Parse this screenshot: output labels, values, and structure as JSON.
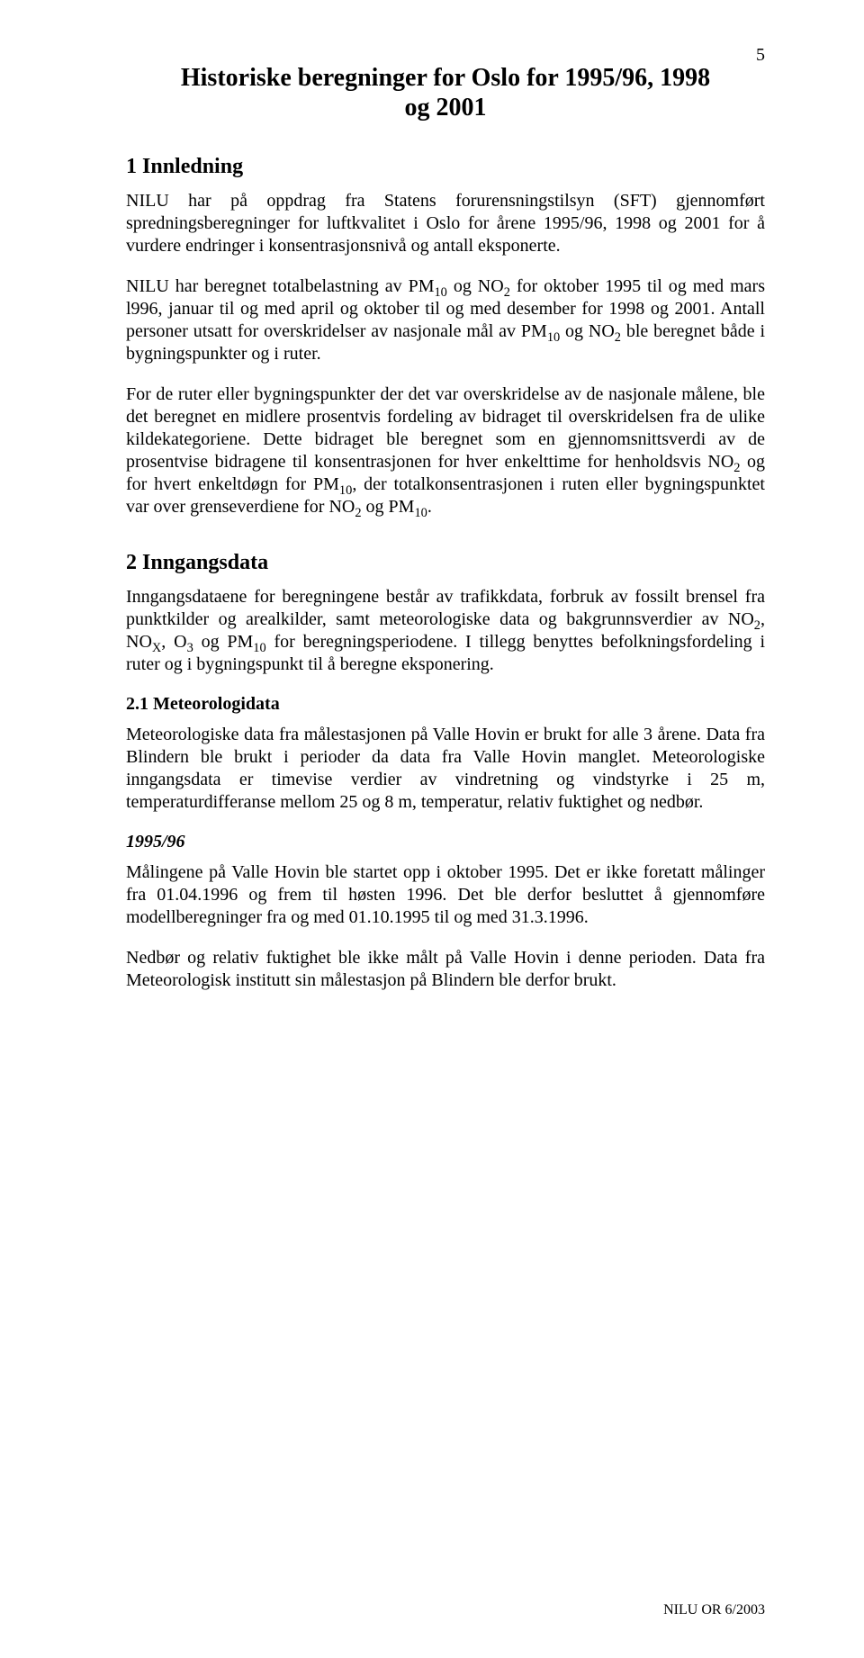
{
  "page_number": "5",
  "title_line1": "Historiske beregninger for Oslo for 1995/96, 1998",
  "title_line2": "og 2001",
  "section1": {
    "heading": "1   Innledning",
    "p1": "NILU har på oppdrag fra Statens forurensningstilsyn (SFT) gjennomført spredningsberegninger for luftkvalitet i Oslo for årene 1995/96, 1998 og 2001 for å vurdere endringer i konsentrasjonsnivå og antall eksponerte.",
    "p2a": "NILU har beregnet totalbelastning av PM",
    "p2b": " og NO",
    "p2c": "  for oktober 1995 til og med mars l996, januar til og med april og oktober til og med desember for 1998 og 2001. Antall personer utsatt for overskridelser av nasjonale mål av PM",
    "p2d": " og NO",
    "p2e": " ble beregnet både i bygningspunkter og i ruter.",
    "p3a": "For de ruter eller bygningspunkter der det var overskridelse av de nasjonale målene, ble det beregnet en midlere prosentvis fordeling av bidraget til overskridelsen fra de ulike kildekategoriene. Dette bidraget ble beregnet som en gjennomsnittsverdi av de prosentvise bidragene til konsentrasjonen for hver enkelttime for henholdsvis NO",
    "p3b": " og for hvert enkeltdøgn for PM",
    "p3c": ", der totalkonsentrasjonen i ruten eller bygningspunktet var over grenseverdiene for NO",
    "p3d": " og PM",
    "p3e": "."
  },
  "section2": {
    "heading": "2   Inngangsdata",
    "p1a": "Inngangsdataene for beregningene består av trafikkdata, forbruk av fossilt brensel fra punktkilder og arealkilder, samt meteorologiske data og bakgrunnsverdier av NO",
    "p1b": ",  NO",
    "p1c": ",  O",
    "p1d": "  og  PM",
    "p1e": "  for  beregningsperiodene.  I  tillegg  benyttes befolkningsfordeling i ruter og i bygningspunkt til å beregne eksponering.",
    "sub1": {
      "heading": "2.1   Meteorologidata",
      "p1": "Meteorologiske data fra målestasjonen på Valle Hovin er brukt for alle 3 årene. Data fra Blindern ble brukt i perioder da data fra Valle Hovin manglet. Meteorologiske inngangsdata er timevise verdier av vindretning og vindstyrke i 25 m, temperaturdifferanse mellom 25 og 8 m, temperatur, relativ fuktighet og nedbør.",
      "year_h": "1995/96",
      "p2": "Målingene på Valle Hovin ble startet opp i oktober 1995. Det er ikke foretatt målinger fra 01.04.1996 og frem til høsten 1996. Det ble derfor besluttet å gjennomføre modellberegninger fra og med 01.10.1995 til og med 31.3.1996.",
      "p3": "Nedbør og relativ fuktighet ble ikke målt på Valle Hovin i denne perioden. Data fra Meteorologisk institutt sin målestasjon på Blindern ble derfor brukt."
    }
  },
  "subs": {
    "ten": "10",
    "two": "2",
    "x": "X",
    "three": "3"
  },
  "footer": "NILU OR  6/2003"
}
